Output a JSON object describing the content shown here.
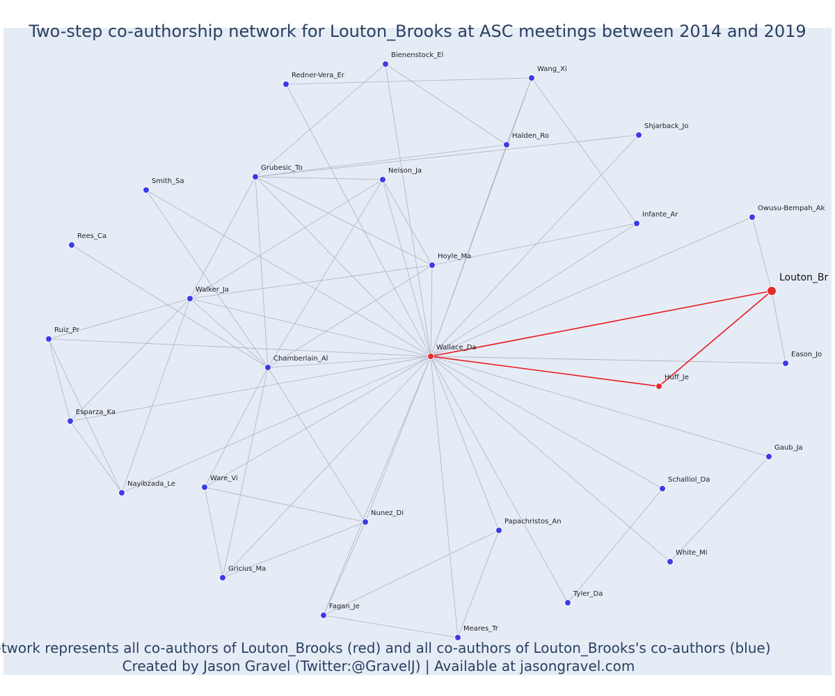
{
  "title": "Two-step co-authorship network for Louton_Brooks at ASC meetings between 2014 and 2019",
  "caption_line1": "Network represents all co-authors of Louton_Brooks (red) and all co-authors of Louton_Brooks's co-authors (blue)",
  "caption_line2": "Created by Jason Gravel (Twitter:@GravelJ) | Available at jasongravel.com",
  "colors": {
    "background": "#e5ecf6",
    "edge": "#b0b0c0",
    "highlight_edge": "#e8191c",
    "node_blue": "#3c3ce6",
    "node_red": "#e52b2b",
    "text": "#2a3f5f"
  },
  "chart_data": {
    "type": "network",
    "focal_node": "Louton_Br",
    "nodes": [
      {
        "id": "Louton_Br",
        "group": "focal"
      },
      {
        "id": "Wallace_Da",
        "group": "coauthor"
      },
      {
        "id": "Huff_Je",
        "group": "coauthor"
      },
      {
        "id": "Bienenstock_El",
        "group": "second"
      },
      {
        "id": "Redner-Vera_Er",
        "group": "second"
      },
      {
        "id": "Wang_Xi",
        "group": "second"
      },
      {
        "id": "Halden_Ro",
        "group": "second"
      },
      {
        "id": "Shjarback_Jo",
        "group": "second"
      },
      {
        "id": "Grubesic_To",
        "group": "second"
      },
      {
        "id": "Nelson_Ja",
        "group": "second"
      },
      {
        "id": "Smith_Sa",
        "group": "second"
      },
      {
        "id": "Infante_Ar",
        "group": "second"
      },
      {
        "id": "Owusu-Bempah_Ak",
        "group": "second"
      },
      {
        "id": "Rees_Ca",
        "group": "second"
      },
      {
        "id": "Hoyle_Ma",
        "group": "second"
      },
      {
        "id": "Walker_Ja",
        "group": "second"
      },
      {
        "id": "Ruiz_Pr",
        "group": "second"
      },
      {
        "id": "Chamberlain_Al",
        "group": "second"
      },
      {
        "id": "Eason_Jo",
        "group": "second"
      },
      {
        "id": "Esparza_Ka",
        "group": "second"
      },
      {
        "id": "Gaub_Ja",
        "group": "second"
      },
      {
        "id": "Schalliol_Da",
        "group": "second"
      },
      {
        "id": "Nayibzada_Le",
        "group": "second"
      },
      {
        "id": "Ware_Vi",
        "group": "second"
      },
      {
        "id": "Nunez_Di",
        "group": "second"
      },
      {
        "id": "Papachristos_An",
        "group": "second"
      },
      {
        "id": "White_Mi",
        "group": "second"
      },
      {
        "id": "Gricius_Ma",
        "group": "second"
      },
      {
        "id": "Tyler_Da",
        "group": "second"
      },
      {
        "id": "Fagan_Je",
        "group": "second"
      },
      {
        "id": "Meares_Tr",
        "group": "second"
      }
    ],
    "edges": [
      [
        "Louton_Br",
        "Wallace_Da",
        "highlight"
      ],
      [
        "Louton_Br",
        "Huff_Je",
        "highlight"
      ],
      [
        "Wallace_Da",
        "Huff_Je",
        "highlight"
      ],
      [
        "Louton_Br",
        "Owusu-Bempah_Ak"
      ],
      [
        "Louton_Br",
        "Eason_Jo"
      ],
      [
        "Wallace_Da",
        "Eason_Jo"
      ],
      [
        "Wallace_Da",
        "Owusu-Bempah_Ak"
      ],
      [
        "Wallace_Da",
        "Bienenstock_El"
      ],
      [
        "Wallace_Da",
        "Halden_Ro"
      ],
      [
        "Wallace_Da",
        "Wang_Xi"
      ],
      [
        "Wallace_Da",
        "Shjarback_Jo"
      ],
      [
        "Wallace_Da",
        "Infante_Ar"
      ],
      [
        "Wallace_Da",
        "Nelson_Ja"
      ],
      [
        "Wallace_Da",
        "Hoyle_Ma"
      ],
      [
        "Wallace_Da",
        "Grubesic_To"
      ],
      [
        "Wallace_Da",
        "Redner-Vera_Er"
      ],
      [
        "Wallace_Da",
        "Smith_Sa"
      ],
      [
        "Wallace_Da",
        "Walker_Ja"
      ],
      [
        "Wallace_Da",
        "Ruiz_Pr"
      ],
      [
        "Wallace_Da",
        "Chamberlain_Al"
      ],
      [
        "Wallace_Da",
        "Esparza_Ka"
      ],
      [
        "Wallace_Da",
        "Nayibzada_Le"
      ],
      [
        "Wallace_Da",
        "Ware_Vi"
      ],
      [
        "Wallace_Da",
        "Nunez_Di"
      ],
      [
        "Wallace_Da",
        "Gricius_Ma"
      ],
      [
        "Wallace_Da",
        "Fagan_Je"
      ],
      [
        "Wallace_Da",
        "Meares_Tr"
      ],
      [
        "Wallace_Da",
        "Papachristos_An"
      ],
      [
        "Wallace_Da",
        "Tyler_Da"
      ],
      [
        "Wallace_Da",
        "White_Mi"
      ],
      [
        "Wallace_Da",
        "Gaub_Ja"
      ],
      [
        "Wallace_Da",
        "Schalliol_Da"
      ],
      [
        "Redner-Vera_Er",
        "Wang_Xi"
      ],
      [
        "Bienenstock_El",
        "Halden_Ro"
      ],
      [
        "Bienenstock_El",
        "Grubesic_To"
      ],
      [
        "Wang_Xi",
        "Halden_Ro"
      ],
      [
        "Wang_Xi",
        "Infante_Ar"
      ],
      [
        "Halden_Ro",
        "Grubesic_To"
      ],
      [
        "Shjarback_Jo",
        "Grubesic_To"
      ],
      [
        "Grubesic_To",
        "Nelson_Ja"
      ],
      [
        "Grubesic_To",
        "Walker_Ja"
      ],
      [
        "Grubesic_To",
        "Chamberlain_Al"
      ],
      [
        "Grubesic_To",
        "Hoyle_Ma"
      ],
      [
        "Nelson_Ja",
        "Hoyle_Ma"
      ],
      [
        "Nelson_Ja",
        "Walker_Ja"
      ],
      [
        "Nelson_Ja",
        "Chamberlain_Al"
      ],
      [
        "Smith_Sa",
        "Chamberlain_Al"
      ],
      [
        "Rees_Ca",
        "Chamberlain_Al"
      ],
      [
        "Hoyle_Ma",
        "Walker_Ja"
      ],
      [
        "Hoyle_Ma",
        "Infante_Ar"
      ],
      [
        "Hoyle_Ma",
        "Chamberlain_Al"
      ],
      [
        "Walker_Ja",
        "Chamberlain_Al"
      ],
      [
        "Walker_Ja",
        "Ruiz_Pr"
      ],
      [
        "Walker_Ja",
        "Esparza_Ka"
      ],
      [
        "Walker_Ja",
        "Nayibzada_Le"
      ],
      [
        "Ruiz_Pr",
        "Esparza_Ka"
      ],
      [
        "Ruiz_Pr",
        "Nayibzada_Le"
      ],
      [
        "Esparza_Ka",
        "Nayibzada_Le"
      ],
      [
        "Chamberlain_Al",
        "Ware_Vi"
      ],
      [
        "Chamberlain_Al",
        "Gricius_Ma"
      ],
      [
        "Chamberlain_Al",
        "Nunez_Di"
      ],
      [
        "Ware_Vi",
        "Nunez_Di"
      ],
      [
        "Ware_Vi",
        "Gricius_Ma"
      ],
      [
        "Gricius_Ma",
        "Nunez_Di"
      ],
      [
        "Nunez_Di",
        "Fagan_Je"
      ],
      [
        "Fagan_Je",
        "Papachristos_An"
      ],
      [
        "Fagan_Je",
        "Meares_Tr"
      ],
      [
        "Papachristos_An",
        "Meares_Tr"
      ],
      [
        "Schalliol_Da",
        "Tyler_Da"
      ],
      [
        "Gaub_Ja",
        "White_Mi"
      ]
    ]
  }
}
